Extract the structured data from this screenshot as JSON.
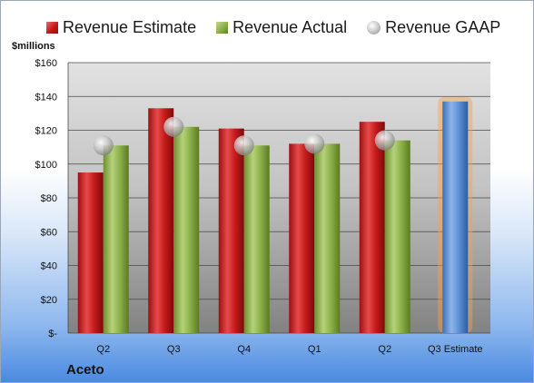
{
  "chart_data": {
    "type": "bar",
    "categories": [
      "Q2",
      "Q3",
      "Q4",
      "Q1",
      "Q2",
      "Q3 Estimate"
    ],
    "series": [
      {
        "name": "Revenue Estimate",
        "values": [
          95,
          133,
          121,
          112,
          125,
          null
        ]
      },
      {
        "name": "Revenue Actual",
        "values": [
          111,
          122,
          111,
          112,
          114,
          null
        ]
      },
      {
        "name": "Revenue GAAP",
        "values": [
          111,
          122,
          111,
          112,
          114,
          null
        ]
      }
    ],
    "forecast": {
      "category": "Q3 Estimate",
      "value": 137
    },
    "ylabel": "$millions",
    "ylim": [
      0,
      160
    ],
    "yticks": [
      0,
      20,
      40,
      60,
      80,
      100,
      120,
      140,
      160
    ],
    "ytick_labels": [
      "$-",
      "$20",
      "$40",
      "$60",
      "$80",
      "$100",
      "$120",
      "$140",
      "$160"
    ],
    "company": "Aceto",
    "legend": "top",
    "grid": true,
    "colors": {
      "estimate": "#c41a1a",
      "actual": "#8daf4a",
      "gaap": "#bdbdbd",
      "forecast": "#5b8fd6",
      "forecast_glow": "#f4a24a"
    }
  }
}
